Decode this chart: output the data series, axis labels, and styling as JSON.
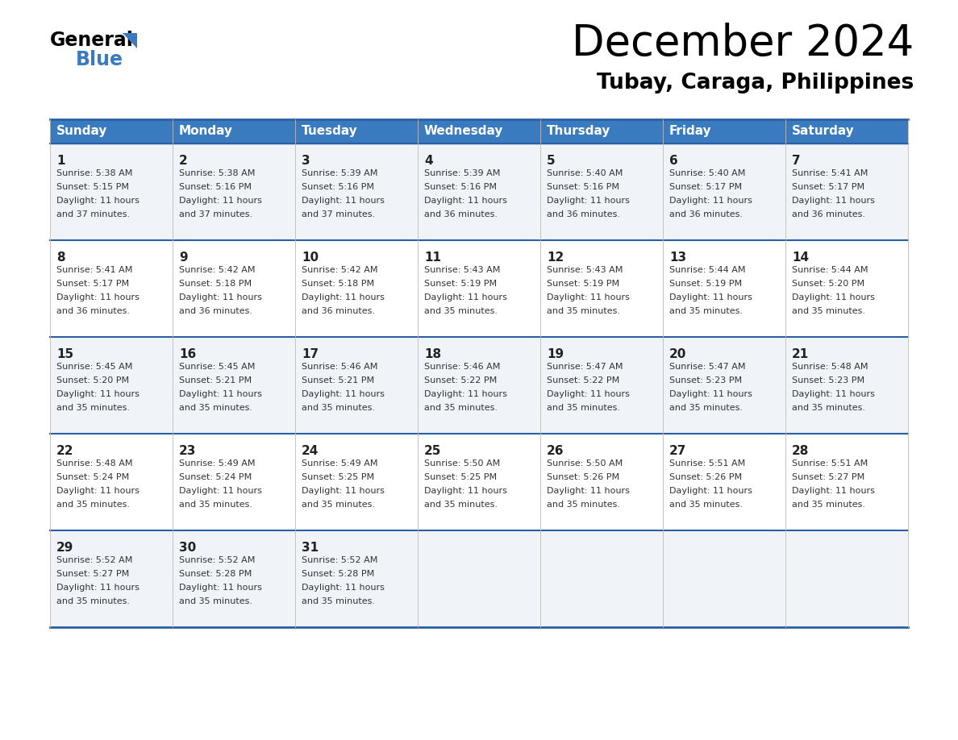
{
  "title": "December 2024",
  "subtitle": "Tubay, Caraga, Philippines",
  "header_bg_color": "#3a7bbf",
  "header_text_color": "#ffffff",
  "row_bg_colors": [
    "#f0f4f8",
    "#ffffff"
  ],
  "grid_line_color": "#2a5fa5",
  "text_color": "#333333",
  "days_of_week": [
    "Sunday",
    "Monday",
    "Tuesday",
    "Wednesday",
    "Thursday",
    "Friday",
    "Saturday"
  ],
  "calendar": [
    [
      {
        "day": "1",
        "sunrise": "5:38 AM",
        "sunset": "5:15 PM",
        "dl1": "Daylight: 11 hours",
        "dl2": "and 37 minutes."
      },
      {
        "day": "2",
        "sunrise": "5:38 AM",
        "sunset": "5:16 PM",
        "dl1": "Daylight: 11 hours",
        "dl2": "and 37 minutes."
      },
      {
        "day": "3",
        "sunrise": "5:39 AM",
        "sunset": "5:16 PM",
        "dl1": "Daylight: 11 hours",
        "dl2": "and 37 minutes."
      },
      {
        "day": "4",
        "sunrise": "5:39 AM",
        "sunset": "5:16 PM",
        "dl1": "Daylight: 11 hours",
        "dl2": "and 36 minutes."
      },
      {
        "day": "5",
        "sunrise": "5:40 AM",
        "sunset": "5:16 PM",
        "dl1": "Daylight: 11 hours",
        "dl2": "and 36 minutes."
      },
      {
        "day": "6",
        "sunrise": "5:40 AM",
        "sunset": "5:17 PM",
        "dl1": "Daylight: 11 hours",
        "dl2": "and 36 minutes."
      },
      {
        "day": "7",
        "sunrise": "5:41 AM",
        "sunset": "5:17 PM",
        "dl1": "Daylight: 11 hours",
        "dl2": "and 36 minutes."
      }
    ],
    [
      {
        "day": "8",
        "sunrise": "5:41 AM",
        "sunset": "5:17 PM",
        "dl1": "Daylight: 11 hours",
        "dl2": "and 36 minutes."
      },
      {
        "day": "9",
        "sunrise": "5:42 AM",
        "sunset": "5:18 PM",
        "dl1": "Daylight: 11 hours",
        "dl2": "and 36 minutes."
      },
      {
        "day": "10",
        "sunrise": "5:42 AM",
        "sunset": "5:18 PM",
        "dl1": "Daylight: 11 hours",
        "dl2": "and 36 minutes."
      },
      {
        "day": "11",
        "sunrise": "5:43 AM",
        "sunset": "5:19 PM",
        "dl1": "Daylight: 11 hours",
        "dl2": "and 35 minutes."
      },
      {
        "day": "12",
        "sunrise": "5:43 AM",
        "sunset": "5:19 PM",
        "dl1": "Daylight: 11 hours",
        "dl2": "and 35 minutes."
      },
      {
        "day": "13",
        "sunrise": "5:44 AM",
        "sunset": "5:19 PM",
        "dl1": "Daylight: 11 hours",
        "dl2": "and 35 minutes."
      },
      {
        "day": "14",
        "sunrise": "5:44 AM",
        "sunset": "5:20 PM",
        "dl1": "Daylight: 11 hours",
        "dl2": "and 35 minutes."
      }
    ],
    [
      {
        "day": "15",
        "sunrise": "5:45 AM",
        "sunset": "5:20 PM",
        "dl1": "Daylight: 11 hours",
        "dl2": "and 35 minutes."
      },
      {
        "day": "16",
        "sunrise": "5:45 AM",
        "sunset": "5:21 PM",
        "dl1": "Daylight: 11 hours",
        "dl2": "and 35 minutes."
      },
      {
        "day": "17",
        "sunrise": "5:46 AM",
        "sunset": "5:21 PM",
        "dl1": "Daylight: 11 hours",
        "dl2": "and 35 minutes."
      },
      {
        "day": "18",
        "sunrise": "5:46 AM",
        "sunset": "5:22 PM",
        "dl1": "Daylight: 11 hours",
        "dl2": "and 35 minutes."
      },
      {
        "day": "19",
        "sunrise": "5:47 AM",
        "sunset": "5:22 PM",
        "dl1": "Daylight: 11 hours",
        "dl2": "and 35 minutes."
      },
      {
        "day": "20",
        "sunrise": "5:47 AM",
        "sunset": "5:23 PM",
        "dl1": "Daylight: 11 hours",
        "dl2": "and 35 minutes."
      },
      {
        "day": "21",
        "sunrise": "5:48 AM",
        "sunset": "5:23 PM",
        "dl1": "Daylight: 11 hours",
        "dl2": "and 35 minutes."
      }
    ],
    [
      {
        "day": "22",
        "sunrise": "5:48 AM",
        "sunset": "5:24 PM",
        "dl1": "Daylight: 11 hours",
        "dl2": "and 35 minutes."
      },
      {
        "day": "23",
        "sunrise": "5:49 AM",
        "sunset": "5:24 PM",
        "dl1": "Daylight: 11 hours",
        "dl2": "and 35 minutes."
      },
      {
        "day": "24",
        "sunrise": "5:49 AM",
        "sunset": "5:25 PM",
        "dl1": "Daylight: 11 hours",
        "dl2": "and 35 minutes."
      },
      {
        "day": "25",
        "sunrise": "5:50 AM",
        "sunset": "5:25 PM",
        "dl1": "Daylight: 11 hours",
        "dl2": "and 35 minutes."
      },
      {
        "day": "26",
        "sunrise": "5:50 AM",
        "sunset": "5:26 PM",
        "dl1": "Daylight: 11 hours",
        "dl2": "and 35 minutes."
      },
      {
        "day": "27",
        "sunrise": "5:51 AM",
        "sunset": "5:26 PM",
        "dl1": "Daylight: 11 hours",
        "dl2": "and 35 minutes."
      },
      {
        "day": "28",
        "sunrise": "5:51 AM",
        "sunset": "5:27 PM",
        "dl1": "Daylight: 11 hours",
        "dl2": "and 35 minutes."
      }
    ],
    [
      {
        "day": "29",
        "sunrise": "5:52 AM",
        "sunset": "5:27 PM",
        "dl1": "Daylight: 11 hours",
        "dl2": "and 35 minutes."
      },
      {
        "day": "30",
        "sunrise": "5:52 AM",
        "sunset": "5:28 PM",
        "dl1": "Daylight: 11 hours",
        "dl2": "and 35 minutes."
      },
      {
        "day": "31",
        "sunrise": "5:52 AM",
        "sunset": "5:28 PM",
        "dl1": "Daylight: 11 hours",
        "dl2": "and 35 minutes."
      },
      null,
      null,
      null,
      null
    ]
  ]
}
